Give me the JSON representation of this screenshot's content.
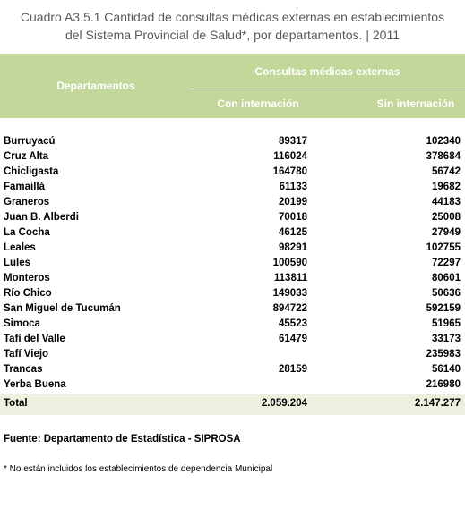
{
  "title": [
    "Cuadro A3.5.1 Cantidad de consultas médicas externas en establecimientos",
    "del Sistema Provincial de Salud*, por departamentos. | 2011"
  ],
  "table": {
    "header": {
      "departamentos": "Departamentos",
      "group": "Consultas médicas externas",
      "columns": [
        "Con internación",
        "Sin internación"
      ]
    },
    "rows": [
      [
        "Burruyacú",
        "89317",
        "102340"
      ],
      [
        "Cruz Alta",
        "116024",
        "378684"
      ],
      [
        "Chicligasta",
        "164780",
        "56742"
      ],
      [
        "Famaillá",
        "61133",
        "19682"
      ],
      [
        "Graneros",
        "20199",
        "44183"
      ],
      [
        "Juan B. Alberdi",
        "70018",
        "25008"
      ],
      [
        "La Cocha",
        "46125",
        "27949"
      ],
      [
        "Leales",
        "98291",
        "102755"
      ],
      [
        "Lules",
        "100590",
        "72297"
      ],
      [
        "Monteros",
        "113811",
        "80601"
      ],
      [
        "Río Chico",
        "149033",
        "50636"
      ],
      [
        "San Miguel de Tucumán",
        "894722",
        "592159"
      ],
      [
        "Simoca",
        "45523",
        "51965"
      ],
      [
        "Tafí del Valle",
        "61479",
        "33173"
      ],
      [
        "Tafí Viejo",
        null,
        "235983"
      ],
      [
        "Trancas",
        "28159",
        "56140"
      ],
      [
        "Yerba Buena",
        null,
        "216980"
      ]
    ],
    "total": [
      "Total",
      "2.059.204",
      "2.147.277"
    ]
  },
  "source": "Fuente: Departamento de Estadística - SIPROSA",
  "note": "* No están incluidos los establecimientos de dependencia Municipal"
}
